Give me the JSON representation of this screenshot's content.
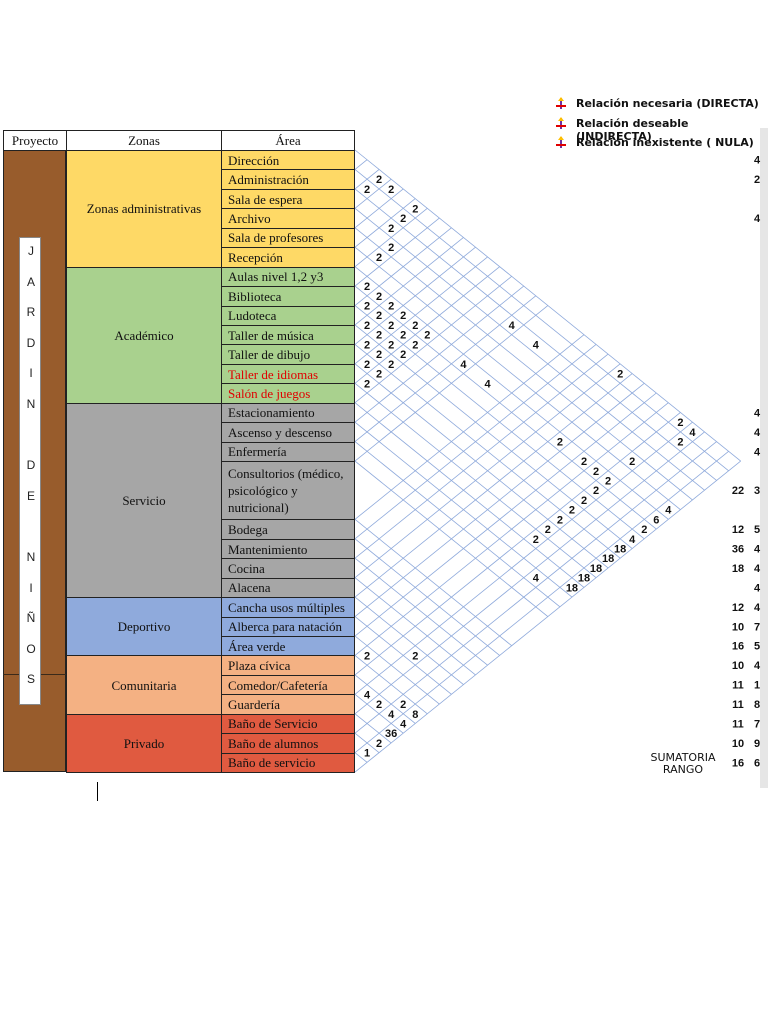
{
  "header": {
    "project": "Proyecto",
    "zones": "Zonas",
    "area": "Área"
  },
  "legend": [
    "Relación necesaria (DIRECTA)",
    "Relación deseable (INDIRECTA)",
    "Relación inexistente ( NULA)"
  ],
  "project_letters": [
    "J",
    "A",
    "R",
    "D",
    "I",
    "N",
    "D",
    "E",
    "N",
    "I",
    "Ñ",
    "O",
    "S"
  ],
  "zones": [
    {
      "name": "Zonas administrativas",
      "color": "#fed966",
      "areas": [
        {
          "label": "Dirección"
        },
        {
          "label": "Administración"
        },
        {
          "label": "Sala de espera"
        },
        {
          "label": "Archivo"
        },
        {
          "label": "Sala de profesores"
        },
        {
          "label": "Recepción"
        }
      ]
    },
    {
      "name": "Académico",
      "color": "#a9d18e",
      "areas": [
        {
          "label": "Aulas nivel 1,2 y3"
        },
        {
          "label": "Biblioteca"
        },
        {
          "label": "Ludoteca"
        },
        {
          "label": "Taller de música"
        },
        {
          "label": "Taller de dibujo"
        },
        {
          "label": "Taller de idiomas",
          "text_color": "#e00000"
        },
        {
          "label": "Salón de juegos",
          "text_color": "#e00000"
        }
      ]
    },
    {
      "name": "Servicio",
      "color": "#a6a6a6",
      "areas": [
        {
          "label": "Estacionamiento"
        },
        {
          "label": "Ascenso y descenso"
        },
        {
          "label": "Enfermería"
        },
        {
          "label": "Consultorios (médico, psicológico y nutricional)"
        },
        {
          "label": "Bodega"
        },
        {
          "label": "Mantenimiento"
        },
        {
          "label": "Cocina"
        },
        {
          "label": "Alacena"
        }
      ]
    },
    {
      "name": "Deportivo",
      "color": "#8faadc",
      "areas": [
        {
          "label": "Cancha usos múltiples"
        },
        {
          "label": "Alberca para natación"
        },
        {
          "label": "Área verde"
        }
      ]
    },
    {
      "name": "Comunitaria",
      "color": "#f4b183",
      "areas": [
        {
          "label": "Plaza cívica"
        },
        {
          "label": "Comedor/Cafetería"
        },
        {
          "label": "Guardería"
        }
      ]
    },
    {
      "name": "Privado",
      "color": "#e05a40",
      "areas": [
        {
          "label": "Baño de Servicio"
        },
        {
          "label": "Baño de alumnos"
        },
        {
          "label": "Baño de servicio"
        }
      ]
    }
  ],
  "matrix": [
    {
      "rows": [
        0,
        2
      ],
      "value": 2
    },
    {
      "rows": [
        1,
        2
      ],
      "value": 2
    },
    {
      "rows": [
        0,
        3
      ],
      "value": 2
    },
    {
      "rows": [
        0,
        5
      ],
      "value": 2
    },
    {
      "rows": [
        1,
        5
      ],
      "value": 2
    },
    {
      "rows": [
        2,
        5
      ],
      "value": 2
    },
    {
      "rows": [
        3,
        6
      ],
      "value": 2
    },
    {
      "rows": [
        4,
        6
      ],
      "value": 2
    },
    {
      "rows": [
        6,
        7
      ],
      "value": 2
    },
    {
      "rows": [
        6,
        8
      ],
      "value": 2
    },
    {
      "rows": [
        7,
        8
      ],
      "value": 2
    },
    {
      "rows": [
        6,
        9
      ],
      "value": 2
    },
    {
      "rows": [
        7,
        9
      ],
      "value": 2
    },
    {
      "rows": [
        8,
        9
      ],
      "value": 2
    },
    {
      "rows": [
        6,
        10
      ],
      "value": 2
    },
    {
      "rows": [
        7,
        10
      ],
      "value": 2
    },
    {
      "rows": [
        8,
        10
      ],
      "value": 2
    },
    {
      "rows": [
        9,
        10
      ],
      "value": 2
    },
    {
      "rows": [
        6,
        11
      ],
      "value": 2
    },
    {
      "rows": [
        7,
        11
      ],
      "value": 2
    },
    {
      "rows": [
        8,
        11
      ],
      "value": 2
    },
    {
      "rows": [
        9,
        11
      ],
      "value": 2
    },
    {
      "rows": [
        10,
        11
      ],
      "value": 2
    },
    {
      "rows": [
        6,
        12
      ],
      "value": 2
    },
    {
      "rows": [
        7,
        12
      ],
      "value": 2
    },
    {
      "rows": [
        8,
        12
      ],
      "value": 2
    },
    {
      "rows": [
        9,
        12
      ],
      "value": 2
    },
    {
      "rows": [
        10,
        12
      ],
      "value": 2
    },
    {
      "rows": [
        11,
        12
      ],
      "value": 2
    },
    {
      "rows": [
        2,
        15
      ],
      "value": 4
    },
    {
      "rows": [
        2,
        16
      ],
      "value": 4
    },
    {
      "rows": [
        6,
        15
      ],
      "value": 4
    },
    {
      "rows": [
        6,
        16
      ],
      "value": 4
    },
    {
      "rows": [
        0,
        20
      ],
      "value": 2
    },
    {
      "rows": [
        0,
        25
      ],
      "value": 2
    },
    {
      "rows": [
        0,
        26
      ],
      "value": 4
    },
    {
      "rows": [
        1,
        26
      ],
      "value": 2
    },
    {
      "rows": [
        6,
        21
      ],
      "value": 2
    },
    {
      "rows": [
        6,
        23
      ],
      "value": 2
    },
    {
      "rows": [
        6,
        24
      ],
      "value": 2
    },
    {
      "rows": [
        4,
        25
      ],
      "value": 2
    },
    {
      "rows": [
        6,
        25
      ],
      "value": 2
    },
    {
      "rows": [
        7,
        25
      ],
      "value": 2
    },
    {
      "rows": [
        8,
        25
      ],
      "value": 2
    },
    {
      "rows": [
        9,
        25
      ],
      "value": 2
    },
    {
      "rows": [
        10,
        25
      ],
      "value": 2
    },
    {
      "rows": [
        11,
        25
      ],
      "value": 2
    },
    {
      "rows": [
        12,
        25
      ],
      "value": 2
    },
    {
      "rows": [
        5,
        29
      ],
      "value": 4
    },
    {
      "rows": [
        6,
        29
      ],
      "value": 6
    },
    {
      "rows": [
        7,
        29
      ],
      "value": 2
    },
    {
      "rows": [
        8,
        29
      ],
      "value": 4
    },
    {
      "rows": [
        9,
        29
      ],
      "value": 18
    },
    {
      "rows": [
        10,
        29
      ],
      "value": 18
    },
    {
      "rows": [
        11,
        29
      ],
      "value": 18
    },
    {
      "rows": [
        12,
        29
      ],
      "value": 18
    },
    {
      "rows": [
        13,
        29
      ],
      "value": 18
    },
    {
      "rows": [
        14,
        27
      ],
      "value": 4
    },
    {
      "rows": [
        23,
        24
      ],
      "value": 2
    },
    {
      "rows": [
        21,
        26
      ],
      "value": 2
    },
    {
      "rows": [
        25,
        26
      ],
      "value": 4
    },
    {
      "rows": [
        25,
        27
      ],
      "value": 2
    },
    {
      "rows": [
        24,
        28
      ],
      "value": 2
    },
    {
      "rows": [
        25,
        28
      ],
      "value": 4
    },
    {
      "rows": [
        25,
        29
      ],
      "value": 4
    },
    {
      "rows": [
        24,
        29
      ],
      "value": 8
    },
    {
      "rows": [
        26,
        29
      ],
      "value": 36
    },
    {
      "rows": [
        27,
        29
      ],
      "value": 2
    },
    {
      "rows": [
        28,
        29
      ],
      "value": 1
    }
  ],
  "sumatoria": [
    4,
    2,
    null,
    4,
    null,
    null,
    null,
    null,
    null,
    null,
    null,
    null,
    null,
    4,
    4,
    4,
    3,
    5,
    4,
    4,
    4,
    4,
    7,
    5,
    4,
    1,
    8,
    7,
    9,
    6
  ],
  "rango": [
    null,
    null,
    null,
    null,
    null,
    null,
    null,
    null,
    null,
    null,
    null,
    null,
    null,
    null,
    null,
    null,
    22,
    12,
    36,
    18,
    null,
    12,
    10,
    16,
    10,
    11,
    11,
    11,
    10,
    16
  ],
  "footer": {
    "sum_label": "SUMATORIA",
    "rank_label": "RANGO"
  }
}
